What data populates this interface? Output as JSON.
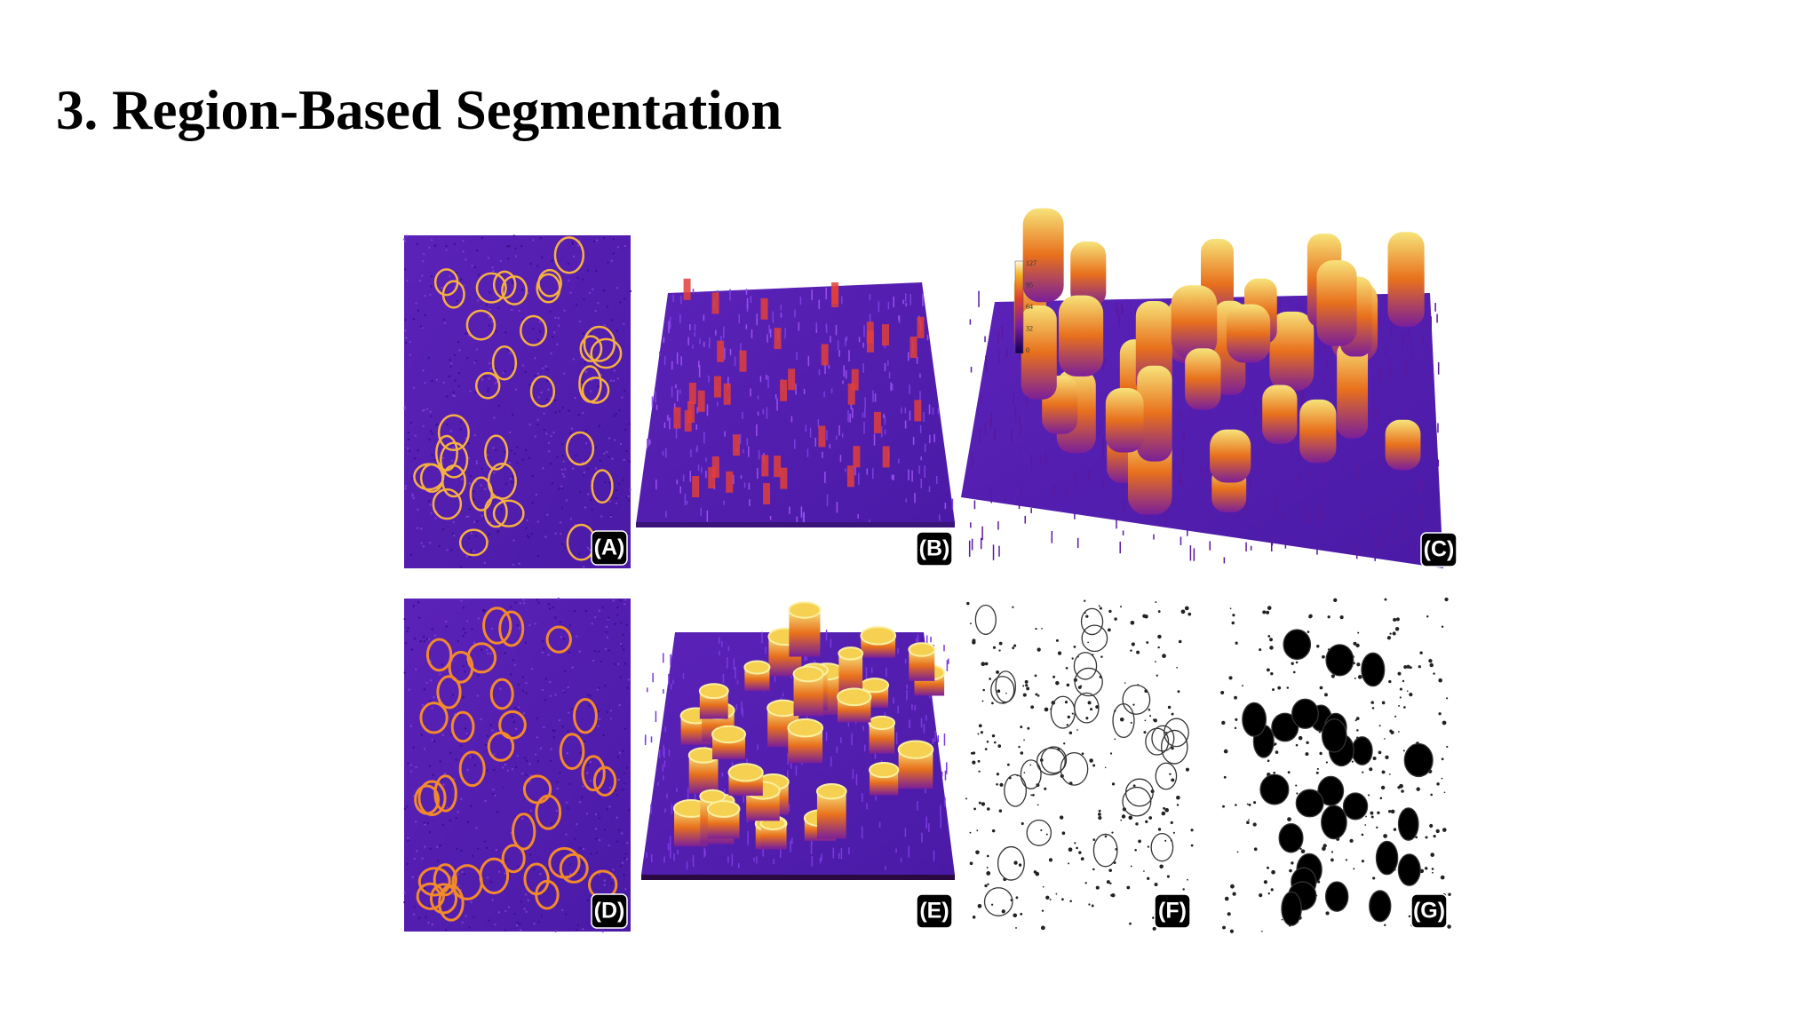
{
  "title": "3. Region-Based Segmentation",
  "figure": {
    "panels": [
      {
        "label": "(A)"
      },
      {
        "label": "(B)"
      },
      {
        "label": "(C)"
      },
      {
        "label": "(D)"
      },
      {
        "label": "(E)"
      },
      {
        "label": "(F)"
      },
      {
        "label": "(G)"
      }
    ],
    "colorbar": {
      "ticks": [
        "127",
        "95",
        "64",
        "32",
        "0"
      ]
    }
  }
}
